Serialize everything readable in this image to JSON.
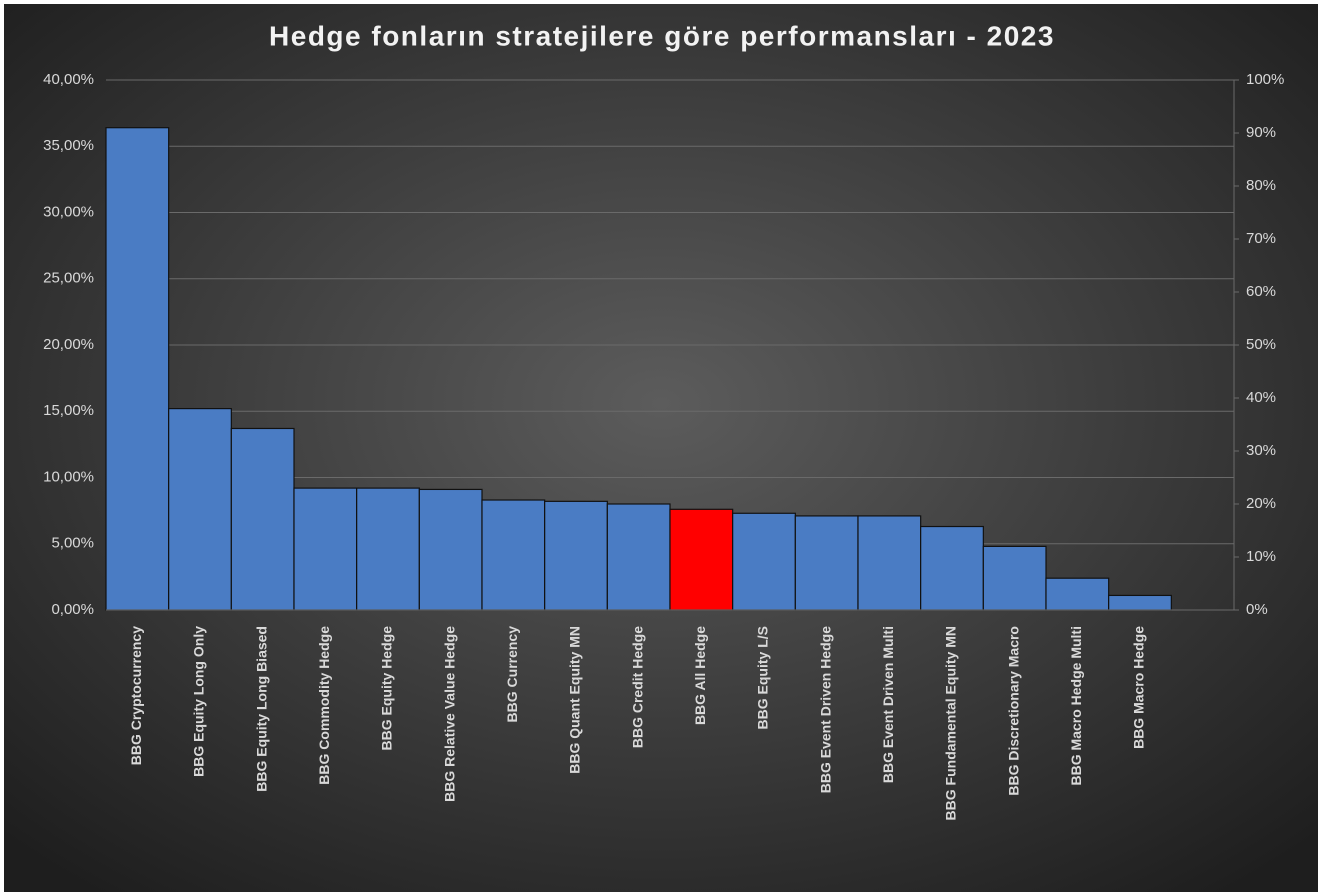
{
  "chart_data": {
    "type": "bar",
    "title": "Hedge fonların stratejilere göre performansları - 2023",
    "categories": [
      "BBG Cryptocurrency",
      "BBG Equity Long Only",
      "BBG Equity Long Biased",
      "BBG Commodity Hedge",
      "BBG Equity Hedge",
      "BBG Relative Value Hedge",
      "BBG Currency",
      "BBG Quant Equity MN",
      "BBG Credit Hedge",
      "BBG All Hedge",
      "BBG Equity L/S",
      "BBG Event Driven Hedge",
      "BBG Event Driven Multi",
      "BBG Fundamental Equity MN",
      "BBG Discretionary Macro",
      "BBG Macro Hedge Multi",
      "BBG Macro Hedge",
      null
    ],
    "values": [
      36.4,
      15.2,
      13.7,
      9.2,
      9.2,
      9.1,
      8.3,
      8.2,
      8.0,
      7.6,
      7.3,
      7.1,
      7.1,
      6.3,
      4.8,
      2.4,
      1.1,
      null
    ],
    "colors": [
      "#4a7cc4",
      "#4a7cc4",
      "#4a7cc4",
      "#4a7cc4",
      "#4a7cc4",
      "#4a7cc4",
      "#4a7cc4",
      "#4a7cc4",
      "#4a7cc4",
      "#ff0000",
      "#4a7cc4",
      "#4a7cc4",
      "#4a7cc4",
      "#4a7cc4",
      "#4a7cc4",
      "#4a7cc4",
      "#4a7cc4",
      "#4a7cc4"
    ],
    "ylim": [
      0,
      40
    ],
    "yticks": [
      {
        "value": 0,
        "label": "0,00%"
      },
      {
        "value": 5,
        "label": "5,00%"
      },
      {
        "value": 10,
        "label": "10,00%"
      },
      {
        "value": 15,
        "label": "15,00%"
      },
      {
        "value": 20,
        "label": "20,00%"
      },
      {
        "value": 25,
        "label": "25,00%"
      },
      {
        "value": 30,
        "label": "30,00%"
      },
      {
        "value": 35,
        "label": "35,00%"
      },
      {
        "value": 40,
        "label": "40,00%"
      }
    ],
    "y2lim": [
      0,
      100
    ],
    "y2ticks": [
      {
        "value": 0,
        "label": "0%"
      },
      {
        "value": 10,
        "label": "10%"
      },
      {
        "value": 20,
        "label": "20%"
      },
      {
        "value": 30,
        "label": "30%"
      },
      {
        "value": 40,
        "label": "40%"
      },
      {
        "value": 50,
        "label": "50%"
      },
      {
        "value": 60,
        "label": "60%"
      },
      {
        "value": 70,
        "label": "70%"
      },
      {
        "value": 80,
        "label": "80%"
      },
      {
        "value": 90,
        "label": "90%"
      },
      {
        "value": 100,
        "label": "100%"
      }
    ],
    "grid": true
  }
}
